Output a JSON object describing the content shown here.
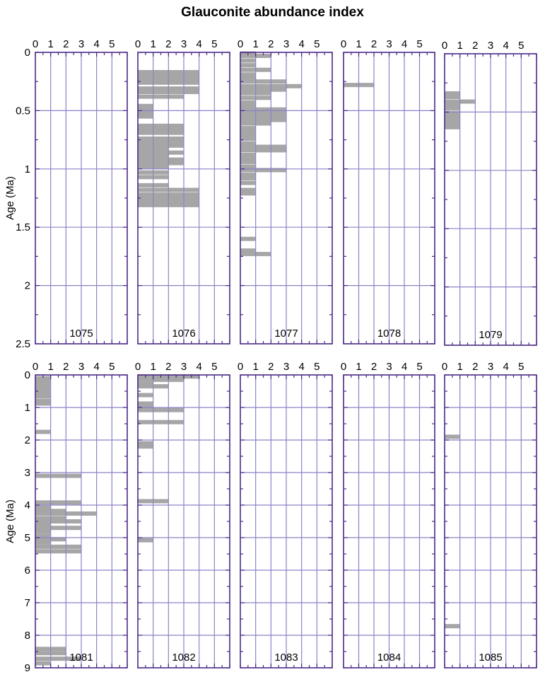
{
  "title": "Glauconite abundance index",
  "colors": {
    "frame": "#4b2a87",
    "grid": "#8a84c8",
    "bar": "#a6a6a6"
  },
  "chart_data": [
    {
      "type": "bar",
      "orientation": "horizontal",
      "site": "1075",
      "xlim": [
        0,
        6
      ],
      "ylim": [
        0,
        2.5
      ],
      "xticks": [
        "0",
        "1",
        "2",
        "3",
        "4",
        "5"
      ],
      "yticks": [
        "0",
        "0.5",
        "1",
        "1.5",
        "2",
        "2.5"
      ],
      "ylabel": "Age (Ma)",
      "bars": []
    },
    {
      "type": "bar",
      "orientation": "horizontal",
      "site": "1076",
      "xlim": [
        0,
        6
      ],
      "ylim": [
        0,
        2.5
      ],
      "xticks": [
        "0",
        "1",
        "2",
        "3",
        "4",
        "5"
      ],
      "ylabel": "",
      "bars": [
        {
          "age": 0.17,
          "value": 4
        },
        {
          "age": 0.2,
          "value": 4
        },
        {
          "age": 0.23,
          "value": 4
        },
        {
          "age": 0.26,
          "value": 4
        },
        {
          "age": 0.31,
          "value": 4
        },
        {
          "age": 0.34,
          "value": 4
        },
        {
          "age": 0.38,
          "value": 3
        },
        {
          "age": 0.46,
          "value": 1
        },
        {
          "age": 0.49,
          "value": 1
        },
        {
          "age": 0.52,
          "value": 1
        },
        {
          "age": 0.55,
          "value": 1
        },
        {
          "age": 0.63,
          "value": 3
        },
        {
          "age": 0.66,
          "value": 3
        },
        {
          "age": 0.69,
          "value": 3
        },
        {
          "age": 0.74,
          "value": 3
        },
        {
          "age": 0.77,
          "value": 3
        },
        {
          "age": 0.8,
          "value": 3
        },
        {
          "age": 0.83,
          "value": 2
        },
        {
          "age": 0.86,
          "value": 3
        },
        {
          "age": 0.89,
          "value": 2
        },
        {
          "age": 0.92,
          "value": 3
        },
        {
          "age": 0.95,
          "value": 3
        },
        {
          "age": 0.98,
          "value": 2
        },
        {
          "age": 1.03,
          "value": 2
        },
        {
          "age": 1.07,
          "value": 2
        },
        {
          "age": 1.14,
          "value": 2
        },
        {
          "age": 1.18,
          "value": 4
        },
        {
          "age": 1.22,
          "value": 4
        },
        {
          "age": 1.25,
          "value": 4
        },
        {
          "age": 1.28,
          "value": 4
        },
        {
          "age": 1.31,
          "value": 4
        }
      ]
    },
    {
      "type": "bar",
      "orientation": "horizontal",
      "site": "1077",
      "xlim": [
        0,
        6
      ],
      "ylim": [
        0,
        2.5
      ],
      "xticks": [
        "0",
        "1",
        "2",
        "3",
        "4",
        "5"
      ],
      "ylabel": "",
      "bars": [
        {
          "age": 0.01,
          "value": 1
        },
        {
          "age": 0.03,
          "value": 2
        },
        {
          "age": 0.07,
          "value": 1
        },
        {
          "age": 0.11,
          "value": 1
        },
        {
          "age": 0.15,
          "value": 2
        },
        {
          "age": 0.19,
          "value": 1
        },
        {
          "age": 0.22,
          "value": 1
        },
        {
          "age": 0.25,
          "value": 3
        },
        {
          "age": 0.29,
          "value": 4
        },
        {
          "age": 0.32,
          "value": 3
        },
        {
          "age": 0.35,
          "value": 2
        },
        {
          "age": 0.39,
          "value": 2
        },
        {
          "age": 0.43,
          "value": 1
        },
        {
          "age": 0.46,
          "value": 1
        },
        {
          "age": 0.49,
          "value": 3
        },
        {
          "age": 0.52,
          "value": 3
        },
        {
          "age": 0.55,
          "value": 3
        },
        {
          "age": 0.58,
          "value": 3
        },
        {
          "age": 0.61,
          "value": 2
        },
        {
          "age": 0.65,
          "value": 1
        },
        {
          "age": 0.68,
          "value": 1
        },
        {
          "age": 0.71,
          "value": 1
        },
        {
          "age": 0.74,
          "value": 1
        },
        {
          "age": 0.78,
          "value": 1
        },
        {
          "age": 0.81,
          "value": 3
        },
        {
          "age": 0.84,
          "value": 3
        },
        {
          "age": 0.88,
          "value": 1
        },
        {
          "age": 0.91,
          "value": 1
        },
        {
          "age": 0.94,
          "value": 1
        },
        {
          "age": 0.98,
          "value": 1
        },
        {
          "age": 1.01,
          "value": 3
        },
        {
          "age": 1.05,
          "value": 1
        },
        {
          "age": 1.08,
          "value": 1
        },
        {
          "age": 1.12,
          "value": 1
        },
        {
          "age": 1.18,
          "value": 1
        },
        {
          "age": 1.21,
          "value": 1
        },
        {
          "age": 1.6,
          "value": 1
        },
        {
          "age": 1.7,
          "value": 1
        },
        {
          "age": 1.73,
          "value": 2
        }
      ]
    },
    {
      "type": "bar",
      "orientation": "horizontal",
      "site": "1078",
      "xlim": [
        0,
        6
      ],
      "ylim": [
        0,
        2.5
      ],
      "xticks": [
        "0",
        "1",
        "2",
        "3",
        "4",
        "5"
      ],
      "ylabel": "",
      "bars": [
        {
          "age": 0.28,
          "value": 2
        }
      ]
    },
    {
      "type": "bar",
      "orientation": "horizontal",
      "site": "1079",
      "xlim": [
        0,
        6
      ],
      "ylim": [
        0,
        2.5
      ],
      "xticks": [
        "0",
        "1",
        "2",
        "3",
        "4",
        "5"
      ],
      "ylabel": "",
      "bars": [
        {
          "age": 0.34,
          "value": 1
        },
        {
          "age": 0.37,
          "value": 1
        },
        {
          "age": 0.41,
          "value": 2
        },
        {
          "age": 0.44,
          "value": 1
        },
        {
          "age": 0.47,
          "value": 1
        },
        {
          "age": 0.51,
          "value": 1
        },
        {
          "age": 0.54,
          "value": 1
        },
        {
          "age": 0.57,
          "value": 1
        },
        {
          "age": 0.6,
          "value": 1
        },
        {
          "age": 0.63,
          "value": 1
        }
      ]
    },
    {
      "type": "bar",
      "orientation": "horizontal",
      "site": "1081",
      "xlim": [
        0,
        6
      ],
      "ylim": [
        0,
        9
      ],
      "xticks": [
        "0",
        "1",
        "2",
        "3",
        "4",
        "5"
      ],
      "yticks": [
        "0",
        "1",
        "2",
        "3",
        "4",
        "5",
        "6",
        "7",
        "8",
        "9"
      ],
      "ylabel": "Age (Ma)",
      "bars": [
        {
          "age": 0.1,
          "value": 1
        },
        {
          "age": 0.17,
          "value": 1
        },
        {
          "age": 0.24,
          "value": 1
        },
        {
          "age": 0.31,
          "value": 1
        },
        {
          "age": 0.38,
          "value": 1
        },
        {
          "age": 0.45,
          "value": 1
        },
        {
          "age": 0.52,
          "value": 1
        },
        {
          "age": 0.59,
          "value": 1
        },
        {
          "age": 0.66,
          "value": 1
        },
        {
          "age": 0.8,
          "value": 1
        },
        {
          "age": 0.88,
          "value": 1
        },
        {
          "age": 1.75,
          "value": 1
        },
        {
          "age": 3.1,
          "value": 3
        },
        {
          "age": 3.92,
          "value": 3
        },
        {
          "age": 4.08,
          "value": 1
        },
        {
          "age": 4.18,
          "value": 2
        },
        {
          "age": 4.26,
          "value": 4
        },
        {
          "age": 4.4,
          "value": 2
        },
        {
          "age": 4.5,
          "value": 3
        },
        {
          "age": 4.6,
          "value": 1
        },
        {
          "age": 4.7,
          "value": 3
        },
        {
          "age": 4.82,
          "value": 1
        },
        {
          "age": 4.95,
          "value": 1
        },
        {
          "age": 5.05,
          "value": 2
        },
        {
          "age": 5.15,
          "value": 1
        },
        {
          "age": 5.28,
          "value": 3
        },
        {
          "age": 5.42,
          "value": 3
        },
        {
          "age": 8.42,
          "value": 2
        },
        {
          "age": 8.55,
          "value": 2
        },
        {
          "age": 8.72,
          "value": 3
        },
        {
          "age": 8.86,
          "value": 1
        }
      ]
    },
    {
      "type": "bar",
      "orientation": "horizontal",
      "site": "1082",
      "xlim": [
        0,
        6
      ],
      "ylim": [
        0,
        9
      ],
      "xticks": [
        "0",
        "1",
        "2",
        "3",
        "4",
        "5"
      ],
      "ylabel": "",
      "bars": [
        {
          "age": 0.05,
          "value": 4
        },
        {
          "age": 0.15,
          "value": 3
        },
        {
          "age": 0.28,
          "value": 1
        },
        {
          "age": 0.35,
          "value": 2
        },
        {
          "age": 0.62,
          "value": 1
        },
        {
          "age": 0.88,
          "value": 1
        },
        {
          "age": 1.0,
          "value": 1
        },
        {
          "age": 1.08,
          "value": 3
        },
        {
          "age": 1.45,
          "value": 3
        },
        {
          "age": 2.1,
          "value": 1
        },
        {
          "age": 2.2,
          "value": 1
        },
        {
          "age": 3.88,
          "value": 2
        },
        {
          "age": 5.08,
          "value": 1
        }
      ]
    },
    {
      "type": "bar",
      "orientation": "horizontal",
      "site": "1083",
      "xlim": [
        0,
        6
      ],
      "ylim": [
        0,
        9
      ],
      "xticks": [
        "0",
        "1",
        "2",
        "3",
        "4",
        "5"
      ],
      "ylabel": "",
      "bars": []
    },
    {
      "type": "bar",
      "orientation": "horizontal",
      "site": "1084",
      "xlim": [
        0,
        6
      ],
      "ylim": [
        0,
        9
      ],
      "xticks": [
        "0",
        "1",
        "2",
        "3",
        "4",
        "5"
      ],
      "ylabel": "",
      "bars": []
    },
    {
      "type": "bar",
      "orientation": "horizontal",
      "site": "1085",
      "xlim": [
        0,
        6
      ],
      "ylim": [
        0,
        9
      ],
      "xticks": [
        "0",
        "1",
        "2",
        "3",
        "4",
        "5"
      ],
      "ylabel": "",
      "bars": [
        {
          "age": 1.9,
          "value": 1
        },
        {
          "age": 7.72,
          "value": 1
        }
      ]
    }
  ]
}
